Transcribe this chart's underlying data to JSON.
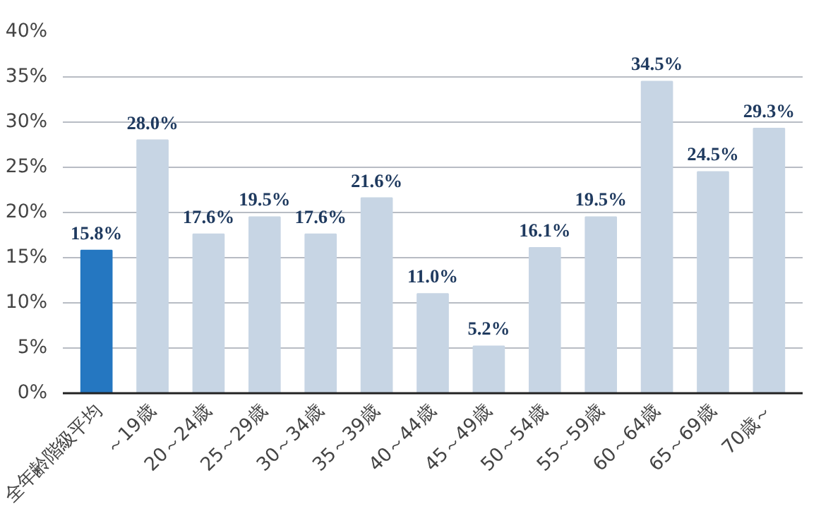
{
  "chart_data": {
    "type": "bar",
    "categories": [
      "全年齢階級平均",
      "～19歳",
      "20～24歳",
      "25～29歳",
      "30～34歳",
      "35～39歳",
      "40～44歳",
      "45～49歳",
      "50～54歳",
      "55～59歳",
      "60～64歳",
      "65～69歳",
      "70歳～"
    ],
    "values": [
      15.8,
      28.0,
      17.6,
      19.5,
      17.6,
      21.6,
      11.0,
      5.2,
      16.1,
      19.5,
      34.5,
      24.5,
      29.3
    ],
    "colors": [
      "#2577c1",
      "#c7d5e4",
      "#c7d5e4",
      "#c7d5e4",
      "#c7d5e4",
      "#c7d5e4",
      "#c7d5e4",
      "#c7d5e4",
      "#c7d5e4",
      "#c7d5e4",
      "#c7d5e4",
      "#c7d5e4",
      "#c7d5e4"
    ],
    "value_labels": [
      "15.8%",
      "28.0%",
      "17.6%",
      "19.5%",
      "17.6%",
      "21.6%",
      "11.0%",
      "5.2%",
      "16.1%",
      "19.5%",
      "34.5%",
      "24.5%",
      "29.3%"
    ],
    "ylim": [
      0,
      40
    ],
    "yticks": [
      {
        "value": 0,
        "label": "0%"
      },
      {
        "value": 5,
        "label": "5%"
      },
      {
        "value": 10,
        "label": "10%"
      },
      {
        "value": 15,
        "label": "15%"
      },
      {
        "value": 20,
        "label": "20%"
      },
      {
        "value": 25,
        "label": "25%"
      },
      {
        "value": 30,
        "label": "30%"
      },
      {
        "value": 35,
        "label": "35%"
      },
      {
        "value": 40,
        "label": "40%"
      }
    ],
    "grid": "y"
  }
}
